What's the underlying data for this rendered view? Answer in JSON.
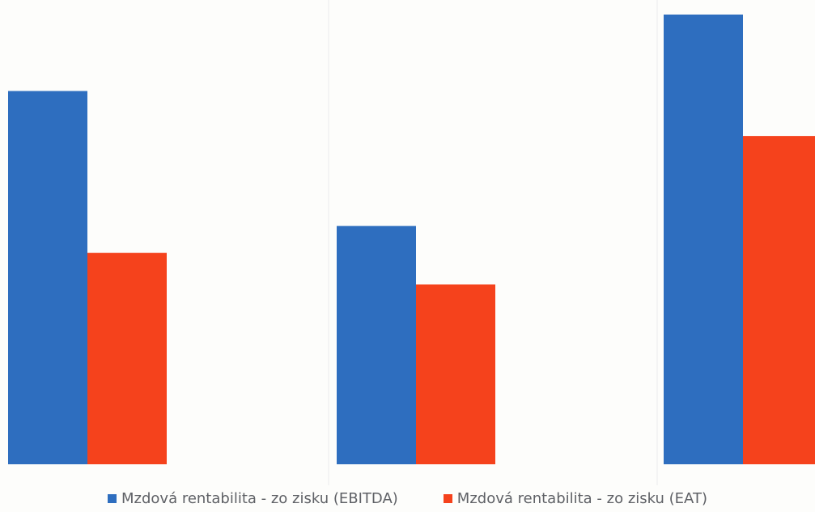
{
  "chart_data": {
    "type": "bar",
    "categories": [
      "",
      "",
      ""
    ],
    "series": [
      {
        "name": "Mzdová rentabilita - zo zisku (EBITDA)",
        "color": "#2e6ebf",
        "values": [
          0.83,
          0.53,
          1.0
        ]
      },
      {
        "name": "Mzdová rentabilita - zo zisku (EAT)",
        "color": "#f5421c",
        "values": [
          0.47,
          0.4,
          0.73
        ]
      }
    ],
    "ylim": [
      0,
      1.0
    ],
    "grid": false,
    "legend": "bottom"
  }
}
